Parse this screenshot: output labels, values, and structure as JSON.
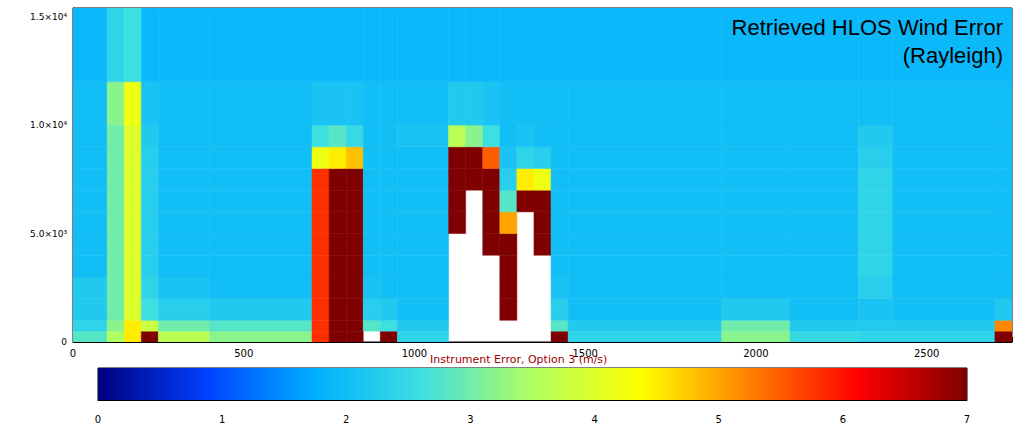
{
  "chart_data": {
    "type": "heatmap",
    "title": "Retrieved HLOS Wind Error",
    "subtitle": "(Rayleigh)",
    "xlim": [
      0,
      2750
    ],
    "xticks": [
      0,
      500,
      1000,
      1500,
      2000,
      2500
    ],
    "ylim": [
      0,
      15400
    ],
    "yticks": [
      0,
      {
        "value": 5000,
        "label": "5.0×10³"
      },
      {
        "value": 10000,
        "label": "1.0×10⁴"
      },
      {
        "value": 15000,
        "label": "1.5×10⁴"
      }
    ],
    "x_edges": [
      0,
      100,
      150,
      200,
      250,
      400,
      700,
      750,
      800,
      850,
      900,
      950,
      1100,
      1150,
      1200,
      1250,
      1300,
      1350,
      1400,
      1450,
      1900,
      2100,
      2300,
      2400,
      2700,
      2750
    ],
    "y_edges": [
      0,
      500,
      1000,
      2000,
      3000,
      4000,
      5000,
      6000,
      7000,
      8000,
      9000,
      10000,
      12000,
      15400
    ],
    "values": [
      [
        2.8,
        2.4,
        2.2,
        2.2,
        2.0,
        2.0,
        2.0,
        2.0,
        2.0,
        2.0,
        2.0,
        2.0,
        1.9
      ],
      [
        3.5,
        3.2,
        3.0,
        3.0,
        3.0,
        3.0,
        3.0,
        3.0,
        3.0,
        3.0,
        3.0,
        3.2,
        2.4
      ],
      [
        4.5,
        4.5,
        4.0,
        4.0,
        4.0,
        4.0,
        4.0,
        4.0,
        4.0,
        4.0,
        4.0,
        4.2,
        2.6
      ],
      [
        7,
        3.8,
        2.6,
        2.4,
        2.3,
        2.3,
        2.3,
        2.3,
        2.3,
        2.3,
        2.2,
        2.1,
        1.9
      ],
      [
        3.6,
        3.0,
        2.3,
        2.1,
        2.0,
        2.0,
        2.0,
        2.0,
        2.0,
        2.0,
        2.0,
        2.0,
        1.9
      ],
      [
        3.2,
        2.8,
        2.2,
        2.0,
        2.0,
        2.0,
        2.0,
        2.0,
        2.0,
        2.0,
        2.0,
        2.0,
        1.9
      ],
      [
        5.8,
        5.8,
        5.8,
        5.8,
        5.8,
        5.8,
        5.8,
        5.8,
        5.8,
        4.2,
        2.6,
        2.1,
        1.9
      ],
      [
        7,
        7,
        7,
        7,
        7,
        7,
        7,
        7,
        7,
        4.5,
        2.8,
        2.1,
        1.9
      ],
      [
        7,
        7,
        7,
        7,
        7,
        7,
        7,
        7,
        7,
        4.8,
        2.5,
        2.1,
        1.9
      ],
      [
        null,
        2.8,
        2.3,
        2.1,
        2.0,
        2.0,
        2.0,
        2.0,
        2.0,
        2.0,
        2.0,
        2.0,
        1.9
      ],
      [
        7,
        2.6,
        2.2,
        2.0,
        2.0,
        2.0,
        2.0,
        2.0,
        2.0,
        2.0,
        2.0,
        2.0,
        1.9
      ],
      [
        2.4,
        2.2,
        2.0,
        2.0,
        2.0,
        2.0,
        2.0,
        2.0,
        2.0,
        2.0,
        2.1,
        2.0,
        1.9
      ],
      [
        null,
        null,
        null,
        null,
        null,
        null,
        7,
        7,
        7,
        7,
        3.6,
        2.2,
        1.9
      ],
      [
        null,
        null,
        null,
        null,
        null,
        null,
        null,
        null,
        7,
        7,
        3.2,
        2.2,
        1.9
      ],
      [
        null,
        null,
        null,
        null,
        null,
        7,
        7,
        7,
        7,
        5.5,
        2.6,
        2.1,
        1.9
      ],
      [
        null,
        null,
        7,
        7,
        7,
        7,
        5,
        2.8,
        2.3,
        2.1,
        2.0,
        2.0,
        1.9
      ],
      [
        null,
        null,
        null,
        null,
        null,
        null,
        null,
        7,
        4.5,
        2.4,
        2.1,
        2.0,
        1.9
      ],
      [
        null,
        null,
        null,
        null,
        null,
        7,
        7,
        7,
        4.2,
        2.3,
        2.0,
        2.0,
        1.9
      ],
      [
        7,
        2.8,
        2.3,
        2.1,
        2.0,
        2.0,
        2.0,
        2.0,
        2.0,
        2.0,
        2.0,
        2.0,
        1.9
      ],
      [
        2.4,
        2.2,
        2.0,
        2.0,
        2.0,
        2.0,
        2.0,
        2.0,
        2.0,
        2.0,
        2.0,
        2.0,
        1.9
      ],
      [
        3.2,
        3.0,
        2.2,
        2.0,
        2.0,
        2.0,
        2.0,
        2.0,
        2.0,
        2.0,
        2.0,
        2.0,
        1.9
      ],
      [
        2.5,
        2.2,
        2.0,
        2.0,
        2.0,
        2.0,
        2.0,
        2.0,
        2.0,
        2.0,
        2.0,
        2.0,
        1.9
      ],
      [
        2.4,
        2.2,
        2.1,
        2.3,
        2.4,
        2.4,
        2.4,
        2.4,
        2.4,
        2.3,
        2.2,
        2.0,
        1.9
      ],
      [
        2.4,
        2.2,
        2.0,
        2.0,
        2.0,
        2.0,
        2.0,
        2.0,
        2.0,
        2.0,
        2.0,
        2.0,
        1.9
      ],
      [
        7,
        5.2,
        2.2,
        2.0,
        2.0,
        2.0,
        2.0,
        2.0,
        2.0,
        2.0,
        2.0,
        2.0,
        1.9
      ]
    ],
    "colorbar": {
      "label": "Instrument Error, Option 3 (m/s)",
      "range": [
        0,
        7
      ],
      "ticks": [
        0,
        1,
        2,
        3,
        4,
        5,
        6,
        7
      ],
      "colors": [
        "#00007f",
        "#0040ff",
        "#00b0ff",
        "#40e0e0",
        "#b0ff60",
        "#ffff00",
        "#ff8000",
        "#ff0000",
        "#7f0000"
      ]
    },
    "grid": false
  }
}
